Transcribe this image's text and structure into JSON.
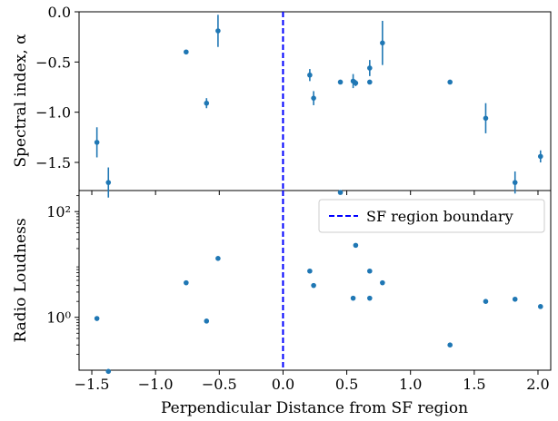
{
  "chart_data": {
    "type": "scatter",
    "xlabel": "Perpendicular Distance from SF region",
    "xlim": [
      -1.6,
      2.1
    ],
    "xticks": [
      -1.5,
      -1.0,
      -0.5,
      0.0,
      0.5,
      1.0,
      1.5,
      2.0
    ],
    "xtick_labels": [
      "−1.5",
      "−1.0",
      "−0.5",
      "0.0",
      "0.5",
      "1.0",
      "1.5",
      "2.0"
    ],
    "boundary": {
      "x": 0.0,
      "label": "SF region boundary",
      "color": "#0000ff",
      "style": "dashed"
    },
    "legend_placement": "top-right",
    "point_color": "#1f77b4",
    "panels": [
      {
        "name": "top",
        "ylabel": "Spectral index, α",
        "ylim": [
          -1.78,
          0.0
        ],
        "yticks": [
          0.0,
          -0.5,
          -1.0,
          -1.5
        ],
        "ytick_labels": [
          "0.0",
          "−0.5",
          "−1.0",
          "−1.5"
        ],
        "yscale": "linear",
        "points": [
          {
            "x": -1.46,
            "y": -1.3,
            "err": 0.15
          },
          {
            "x": -1.37,
            "y": -1.7,
            "err": 0.15
          },
          {
            "x": -0.76,
            "y": -0.4,
            "err": 0
          },
          {
            "x": -0.6,
            "y": -0.91,
            "err": 0.05
          },
          {
            "x": -0.51,
            "y": -0.19,
            "err": 0.16
          },
          {
            "x": 0.21,
            "y": -0.63,
            "err": 0.06
          },
          {
            "x": 0.24,
            "y": -0.86,
            "err": 0.07
          },
          {
            "x": 0.45,
            "y": -0.7,
            "err": 0
          },
          {
            "x": 0.55,
            "y": -0.69,
            "err": 0.07
          },
          {
            "x": 0.57,
            "y": -0.71,
            "err": 0.03
          },
          {
            "x": 0.68,
            "y": -0.56,
            "err": 0.08
          },
          {
            "x": 0.68,
            "y": -0.7,
            "err": 0
          },
          {
            "x": 0.78,
            "y": -0.31,
            "err": 0.22
          },
          {
            "x": 1.31,
            "y": -0.7,
            "err": 0
          },
          {
            "x": 1.59,
            "y": -1.06,
            "err": 0.15
          },
          {
            "x": 1.82,
            "y": -1.7,
            "err": 0.11
          },
          {
            "x": 2.02,
            "y": -1.44,
            "err": 0.06
          }
        ]
      },
      {
        "name": "bottom",
        "ylabel": "Radio Loudness",
        "yscale": "log",
        "ylim": [
          0.1,
          250
        ],
        "yticks": [
          1,
          100
        ],
        "ytick_labels": [
          "10⁰",
          "10²"
        ],
        "points": [
          {
            "x": -1.46,
            "y": 0.95
          },
          {
            "x": -1.37,
            "y": 0.095
          },
          {
            "x": -0.76,
            "y": 4.5
          },
          {
            "x": -0.6,
            "y": 0.85
          },
          {
            "x": -0.51,
            "y": 13
          },
          {
            "x": 0.21,
            "y": 7.5
          },
          {
            "x": 0.24,
            "y": 4.0
          },
          {
            "x": 0.45,
            "y": 230
          },
          {
            "x": 0.55,
            "y": 2.3
          },
          {
            "x": 0.57,
            "y": 23
          },
          {
            "x": 0.68,
            "y": 7.5
          },
          {
            "x": 0.68,
            "y": 2.3
          },
          {
            "x": 0.78,
            "y": 4.5
          },
          {
            "x": 1.31,
            "y": 0.3
          },
          {
            "x": 1.59,
            "y": 2.0
          },
          {
            "x": 1.82,
            "y": 2.2
          },
          {
            "x": 2.02,
            "y": 1.6
          }
        ]
      }
    ]
  }
}
